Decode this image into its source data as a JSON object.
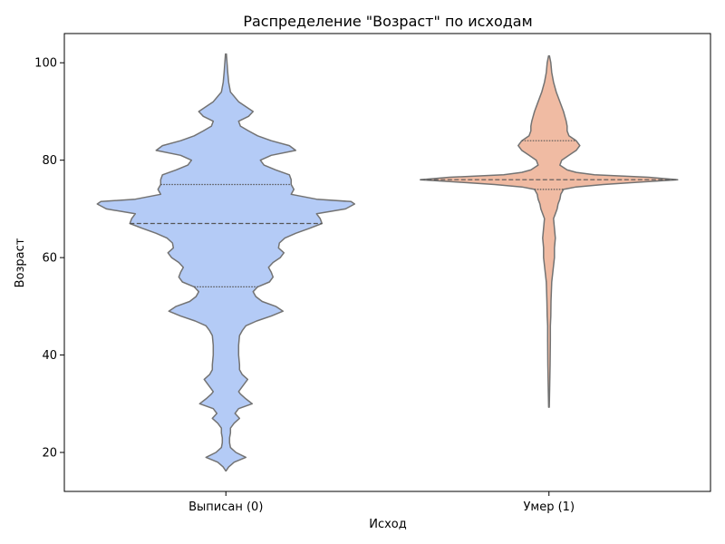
{
  "chart_data": {
    "type": "violin",
    "title": "Распределение \"Возраст\" по исходам",
    "xlabel": "Исход",
    "ylabel": "Возраст",
    "categories": [
      "Выписан (0)",
      "Умер (1)"
    ],
    "ylim": [
      12,
      106
    ],
    "yticks": [
      20,
      40,
      60,
      80,
      100
    ],
    "grid": false,
    "colors": [
      "#b4cbf6",
      "#f0bba3"
    ],
    "edge_color": "#737373",
    "violins": [
      {
        "category": "Выписан (0)",
        "ymin": 16.2,
        "ymax": 101.8,
        "quartiles": [
          54,
          67,
          75
        ],
        "profile": [
          [
            16.2,
            0.2
          ],
          [
            17,
            3
          ],
          [
            18,
            9
          ],
          [
            19,
            22
          ],
          [
            20,
            11
          ],
          [
            21,
            5
          ],
          [
            22,
            4
          ],
          [
            23,
            4
          ],
          [
            24,
            5
          ],
          [
            25,
            5
          ],
          [
            26,
            9
          ],
          [
            27,
            15
          ],
          [
            28,
            10
          ],
          [
            29,
            14
          ],
          [
            30,
            29
          ],
          [
            31,
            22
          ],
          [
            32,
            16
          ],
          [
            32.5,
            14
          ],
          [
            33,
            16
          ],
          [
            34,
            20
          ],
          [
            35,
            24
          ],
          [
            36,
            18
          ],
          [
            37,
            15
          ],
          [
            38,
            15
          ],
          [
            40,
            14
          ],
          [
            42,
            14
          ],
          [
            44,
            15
          ],
          [
            45,
            18
          ],
          [
            46,
            22
          ],
          [
            47,
            34
          ],
          [
            48,
            50
          ],
          [
            49,
            63
          ],
          [
            50,
            55
          ],
          [
            51,
            40
          ],
          [
            52,
            33
          ],
          [
            53,
            30
          ],
          [
            54,
            35
          ],
          [
            55,
            48
          ],
          [
            56,
            52
          ],
          [
            57,
            50
          ],
          [
            58,
            47
          ],
          [
            59,
            52
          ],
          [
            60,
            60
          ],
          [
            61,
            64
          ],
          [
            62,
            58
          ],
          [
            63,
            59
          ],
          [
            64,
            65
          ],
          [
            65,
            77
          ],
          [
            66,
            92
          ],
          [
            67,
            106
          ],
          [
            68,
            104
          ],
          [
            69,
            100
          ],
          [
            70,
            132
          ],
          [
            71,
            142
          ],
          [
            71.5,
            138
          ],
          [
            72,
            100
          ],
          [
            73,
            72
          ],
          [
            74,
            75
          ],
          [
            75,
            72
          ],
          [
            76,
            72
          ],
          [
            77,
            70
          ],
          [
            78,
            55
          ],
          [
            79,
            42
          ],
          [
            80,
            38
          ],
          [
            81,
            50
          ],
          [
            82,
            77
          ],
          [
            83,
            70
          ],
          [
            84,
            50
          ],
          [
            85,
            35
          ],
          [
            86,
            25
          ],
          [
            87,
            16
          ],
          [
            88,
            14
          ],
          [
            89,
            25
          ],
          [
            90,
            30
          ],
          [
            91,
            22
          ],
          [
            92,
            14
          ],
          [
            94,
            5
          ],
          [
            96,
            3
          ],
          [
            98,
            2
          ],
          [
            101.8,
            0.5
          ]
        ]
      },
      {
        "category": "Умер (1)",
        "ymin": 29.3,
        "ymax": 101.4,
        "quartiles": [
          74,
          76,
          84
        ],
        "profile": [
          [
            29.3,
            0.4
          ],
          [
            33,
            0.8
          ],
          [
            38,
            1.2
          ],
          [
            43,
            1.5
          ],
          [
            46,
            1.5
          ],
          [
            48,
            2
          ],
          [
            51,
            2.3
          ],
          [
            55,
            3
          ],
          [
            60,
            6
          ],
          [
            62,
            6
          ],
          [
            64,
            7
          ],
          [
            66,
            6
          ],
          [
            68,
            5
          ],
          [
            69,
            7
          ],
          [
            70,
            9
          ],
          [
            71,
            10
          ],
          [
            72,
            12
          ],
          [
            73,
            13
          ],
          [
            74,
            16
          ],
          [
            74.5,
            30
          ],
          [
            75,
            60
          ],
          [
            75.5,
            100
          ],
          [
            76,
            142
          ],
          [
            76.5,
            110
          ],
          [
            77,
            50
          ],
          [
            77.5,
            30
          ],
          [
            78,
            20
          ],
          [
            79,
            12
          ],
          [
            80,
            14
          ],
          [
            81,
            22
          ],
          [
            82,
            30
          ],
          [
            83,
            34
          ],
          [
            84,
            30
          ],
          [
            85,
            22
          ],
          [
            86,
            20
          ],
          [
            87,
            20
          ],
          [
            88,
            19
          ],
          [
            90,
            16
          ],
          [
            92,
            12
          ],
          [
            94,
            8
          ],
          [
            96,
            5
          ],
          [
            98,
            3
          ],
          [
            100,
            2
          ],
          [
            101.4,
            0.5
          ]
        ]
      }
    ]
  }
}
